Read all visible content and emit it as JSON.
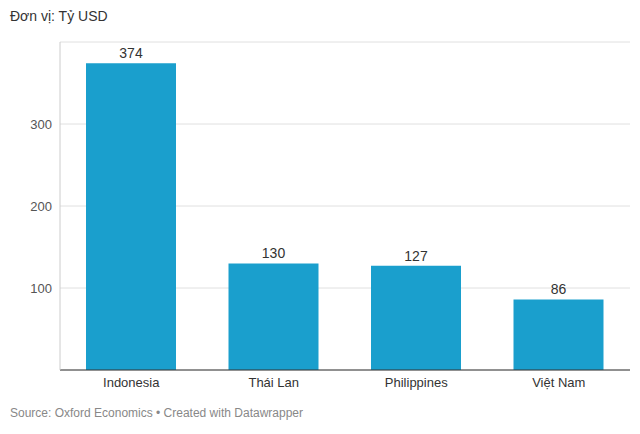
{
  "chart_data": {
    "type": "bar",
    "subtitle": "Đơn vị: Tỷ USD",
    "categories": [
      "Indonesia",
      "Thái Lan",
      "Philippines",
      "Việt Nam"
    ],
    "values": [
      374,
      130,
      127,
      86
    ],
    "color": "#1a9fcd",
    "ylim": [
      0,
      400
    ],
    "yticks": [
      100,
      200,
      300
    ],
    "grid": true,
    "data_labels": true,
    "source": "Source: Oxford Economics • Created with Datawrapper"
  }
}
